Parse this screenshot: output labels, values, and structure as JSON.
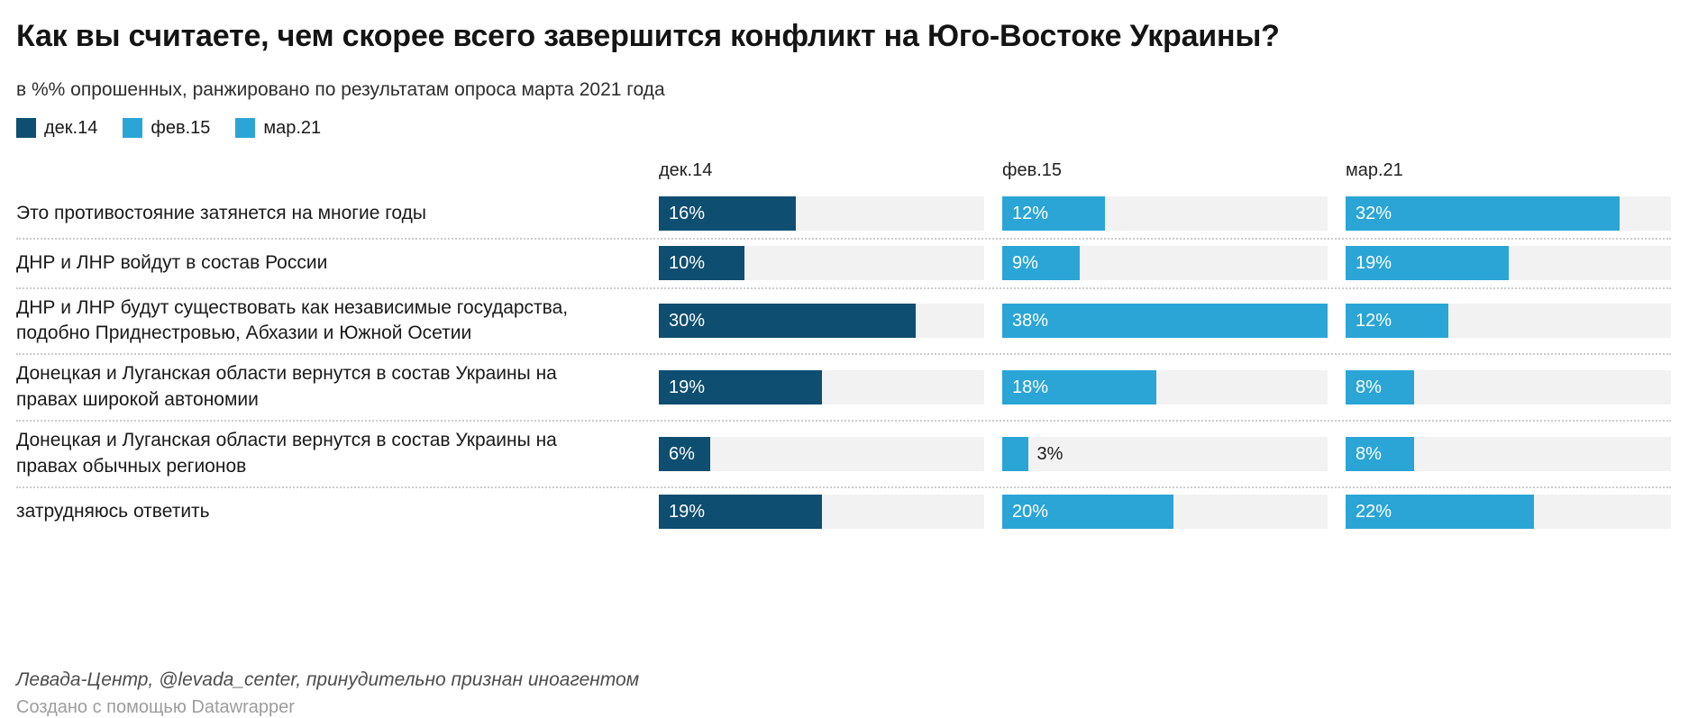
{
  "title": "Как вы считаете, чем скорее всего завершится конфликт на Юго-Востоке Украины?",
  "subtitle": "в %% опрошенных, ранжировано по результатам опроса марта 2021 года",
  "legend": [
    {
      "label": "дек.14",
      "color": "#0e4e70"
    },
    {
      "label": "фев.15",
      "color": "#2aa5d6"
    },
    {
      "label": "мар.21",
      "color": "#2aa5d6"
    }
  ],
  "columns": [
    "дек.14",
    "фев.15",
    "мар.21"
  ],
  "chart_data": {
    "type": "bar",
    "layout": "split-bars-3-columns",
    "categories": [
      "Это противостояние затянется на многие годы",
      "ДНР и ЛНР войдут в состав России",
      "ДНР и ЛНР будут существовать как независимые государства, подобно Приднестровью, Абхазии и Южной Осетии",
      "Донецкая и Луганская области вернутся в состав Украины на правах широкой автономии",
      "Донецкая и Луганская области вернутся в состав Украины на правах обычных регионов",
      "затрудняюсь ответить"
    ],
    "series": [
      {
        "name": "дек.14",
        "color": "#0e4e70",
        "values": [
          16,
          10,
          30,
          19,
          6,
          19
        ]
      },
      {
        "name": "фев.15",
        "color": "#2aa5d6",
        "values": [
          12,
          9,
          38,
          18,
          3,
          20
        ]
      },
      {
        "name": "мар.21",
        "color": "#2aa5d6",
        "values": [
          32,
          19,
          12,
          8,
          8,
          22
        ]
      }
    ],
    "value_suffix": "%",
    "xmax": 38,
    "track_color": "#f2f2f2",
    "grid": false,
    "legend_position": "top-left"
  },
  "footer": {
    "source": "Левада-Центр, @levada_center, принудительно признан иноагентом",
    "attribution": "Создано с помощью Datawrapper"
  }
}
